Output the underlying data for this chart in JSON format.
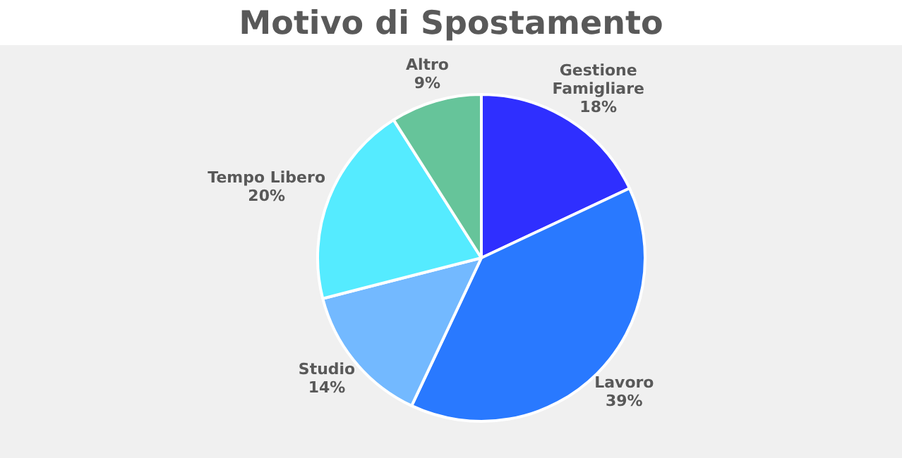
{
  "chart_data": {
    "type": "pie",
    "title": "Motivo di Spostamento",
    "categories": [
      "Gestione Famigliare",
      "Lavoro",
      "Studio",
      "Tempo Libero",
      "Altro"
    ],
    "values": [
      18,
      39,
      14,
      20,
      9
    ],
    "value_labels": [
      "18%",
      "39%",
      "14%",
      "20%",
      "9%"
    ],
    "colors": [
      "#2f2fff",
      "#2979ff",
      "#73b9ff",
      "#55ebff",
      "#66c49a"
    ],
    "legend": false
  }
}
